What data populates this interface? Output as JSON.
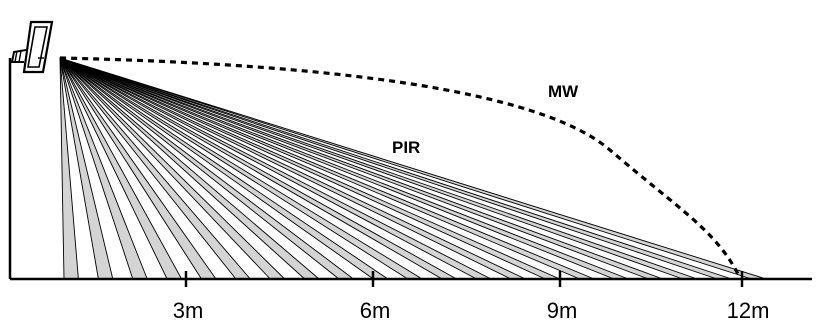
{
  "diagram": {
    "labels": {
      "microwave": "MW",
      "pir": "PIR"
    },
    "distance_ticks": [
      "3m",
      "6m",
      "9m",
      "12m"
    ],
    "pir_zone_count": 21,
    "colors": {
      "line": "#000000",
      "zone_fill": "#d4d4d4",
      "background": "#ffffff"
    },
    "icons": [
      "motion-detector-icon"
    ]
  }
}
